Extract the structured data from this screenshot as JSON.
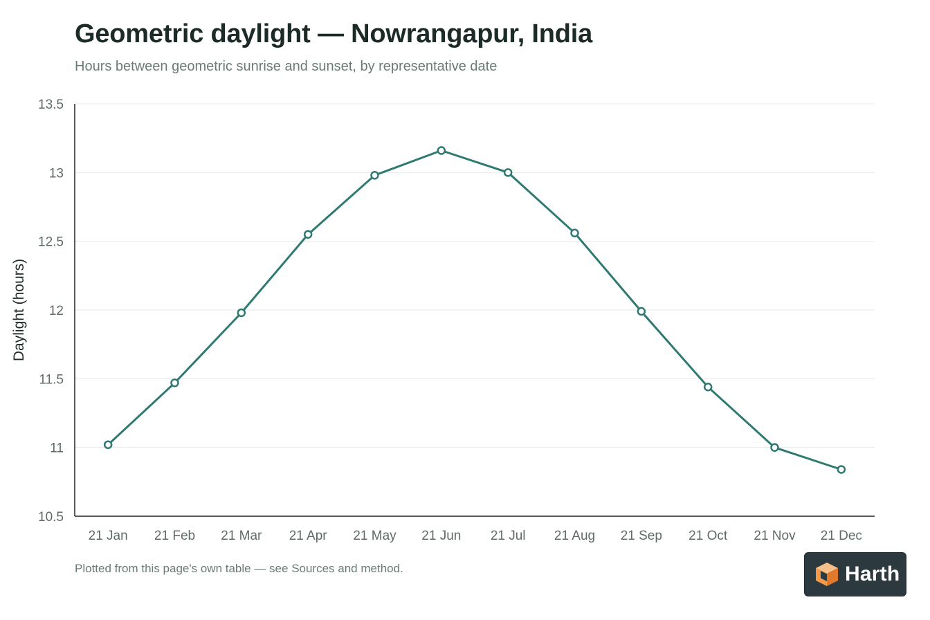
{
  "header": {
    "title": "Geometric daylight — Nowrangapur, India",
    "subtitle": "Hours between geometric sunrise and sunset, by representative date"
  },
  "footnote": "Plotted from this page's own table — see Sources and method.",
  "logo": {
    "text": "Harth",
    "icon": "cube-logo-icon"
  },
  "colors": {
    "line": "#2e7a70",
    "grid": "#e6e9e8",
    "axis": "#222222"
  },
  "chart_data": {
    "type": "line",
    "title": "Geometric daylight — Nowrangapur, India",
    "subtitle": "Hours between geometric sunrise and sunset, by representative date",
    "xlabel": "",
    "ylabel": "Daylight (hours)",
    "ylim": [
      10.5,
      13.5
    ],
    "yticks": [
      "10.5",
      "11",
      "11.5",
      "12",
      "12.5",
      "13",
      "13.5"
    ],
    "grid": true,
    "categories": [
      "21 Jan",
      "21 Feb",
      "21 Mar",
      "21 Apr",
      "21 May",
      "21 Jun",
      "21 Jul",
      "21 Aug",
      "21 Sep",
      "21 Oct",
      "21 Nov",
      "21 Dec"
    ],
    "series": [
      {
        "values": [
          11.02,
          11.47,
          11.98,
          12.55,
          12.98,
          13.16,
          13.0,
          12.56,
          11.99,
          11.44,
          11.0,
          10.84
        ]
      }
    ]
  }
}
